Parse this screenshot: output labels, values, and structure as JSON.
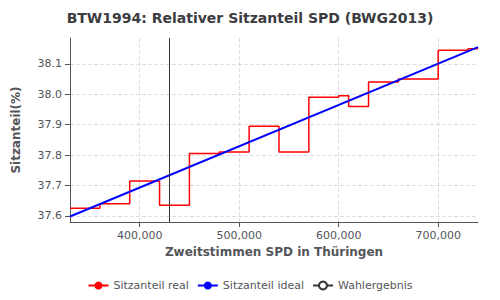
{
  "chart_data": {
    "type": "line",
    "title": "BTW1994: Relativer Sitzanteil SPD (BWG2013)",
    "xlabel": "Zweitstimmen SPD in Thüringen",
    "ylabel": "Sitzanteil(%)",
    "xlim": [
      330000,
      740000
    ],
    "ylim": [
      37.58,
      38.185
    ],
    "xticks": [
      {
        "value": 400000,
        "label": "400,000"
      },
      {
        "value": 500000,
        "label": "500,000"
      },
      {
        "value": 600000,
        "label": "600,000"
      },
      {
        "value": 700000,
        "label": "700,000"
      }
    ],
    "yticks": [
      37.6,
      37.7,
      37.8,
      37.9,
      {
        "value": 38.0,
        "label": "38.0"
      },
      38.1
    ],
    "grid": true,
    "legend": "bottom",
    "series": [
      {
        "name": "Sitzanteil real",
        "type": "line",
        "color": "#ff0000",
        "x": [
          330000,
          360000,
          360000,
          390000,
          390000,
          420000,
          420000,
          450000,
          450000,
          480000,
          480000,
          510000,
          510000,
          540000,
          540000,
          570000,
          570000,
          600000,
          600000,
          610000,
          610000,
          630000,
          630000,
          660000,
          660000,
          700000,
          700000,
          730000,
          730000,
          740000
        ],
        "values": [
          37.625,
          37.625,
          37.64,
          37.64,
          37.715,
          37.715,
          37.635,
          37.635,
          37.805,
          37.805,
          37.81,
          37.81,
          37.895,
          37.895,
          37.81,
          37.81,
          37.99,
          37.99,
          37.995,
          37.995,
          37.96,
          37.96,
          38.04,
          38.04,
          38.05,
          38.05,
          38.145,
          38.145,
          38.15,
          38.15
        ]
      },
      {
        "name": "Sitzanteil ideal",
        "type": "line",
        "color": "#0000ff",
        "x": [
          330000,
          740000
        ],
        "values": [
          37.598,
          38.155
        ]
      },
      {
        "name": "Wahlergebnis",
        "type": "vline",
        "color": "#333333",
        "x": 430000
      }
    ]
  }
}
